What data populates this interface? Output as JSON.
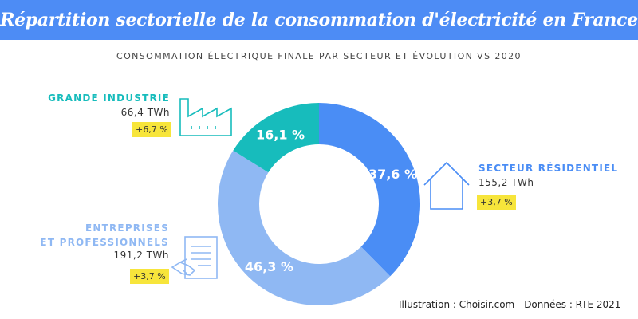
{
  "header": {
    "title": "Répartition sectorielle de la consommation d'électricité en France",
    "subtitle": "CONSOMMATION ÉLECTRIQUE FINALE PAR SECTEUR ET ÉVOLUTION VS 2020"
  },
  "colors": {
    "banner": "#4d8cf5",
    "industrie": "#17bcbc",
    "residentiel": "#4a8df5",
    "entreprises": "#8fb8f3",
    "highlight": "#f7e53b"
  },
  "sectors": {
    "industrie": {
      "name": "GRANDE INDUSTRIE",
      "value": "66,4 TWh",
      "change": "+6,7 %",
      "share_label": "16,1 %"
    },
    "residentiel": {
      "name": "SECTEUR RÉSIDENTIEL",
      "value": "155,2 TWh",
      "change": "+3,7 %",
      "share_label": "37,6 %"
    },
    "entreprises": {
      "name_line1": "ENTREPRISES",
      "name_line2": "ET PROFESSIONNELS",
      "value": "191,2 TWh",
      "change": "+3,7 %",
      "share_label": "46,3 %"
    }
  },
  "icons": {
    "industrie": "factory-icon",
    "residentiel": "house-icon",
    "entreprises": "handshake-contract-icon"
  },
  "footer": {
    "credit": "Illustration : Choisir.com - Données : RTE 2021"
  },
  "chart_data": {
    "type": "pie",
    "donut": true,
    "title": "Répartition sectorielle de la consommation d'électricité en France",
    "subtitle": "CONSOMMATION ÉLECTRIQUE FINALE PAR SECTEUR ET ÉVOLUTION VS 2020",
    "categories": [
      "Secteur résidentiel",
      "Entreprises et professionnels",
      "Grande industrie"
    ],
    "values": [
      37.6,
      46.3,
      16.1
    ],
    "units": "%",
    "consumption_twh": [
      155.2,
      191.2,
      66.4
    ],
    "change_vs_2020_pct": [
      3.7,
      3.7,
      6.7
    ],
    "colors": [
      "#4a8df5",
      "#8fb8f3",
      "#17bcbc"
    ]
  }
}
